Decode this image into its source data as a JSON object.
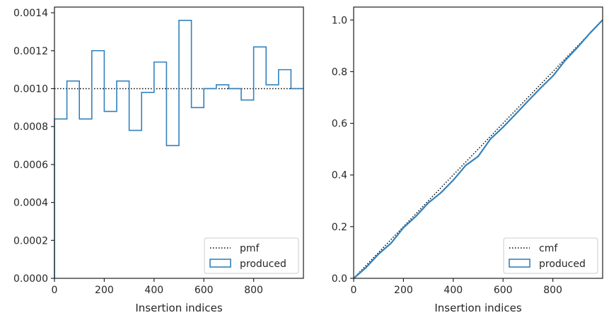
{
  "colors": {
    "produced": "#3182bd",
    "reference": "#000000",
    "axes": "#262626",
    "legend_border": "#cccccc"
  },
  "chart_data": [
    {
      "type": "histogram-step",
      "xlabel": "Insertion indices",
      "ylabel": "",
      "xlim": [
        0,
        1000
      ],
      "ylim": [
        0,
        0.00143
      ],
      "x_ticks": [
        0,
        200,
        400,
        600,
        800
      ],
      "y_ticks": [
        0.0,
        0.0002,
        0.0004,
        0.0006,
        0.0008,
        0.001,
        0.0012,
        0.0014
      ],
      "y_tick_labels": [
        "0.0000",
        "0.0002",
        "0.0004",
        "0.0006",
        "0.0008",
        "0.0010",
        "0.0012",
        "0.0014"
      ],
      "x_tick_labels": [
        "0",
        "200",
        "400",
        "600",
        "800"
      ],
      "legend_position": "lower right",
      "series": [
        {
          "name": "pmf",
          "style": "dotted",
          "x": [
            0,
            1000
          ],
          "y": [
            0.001,
            0.001
          ]
        },
        {
          "name": "produced",
          "style": "step",
          "bin_edges": [
            0,
            50,
            100,
            150,
            200,
            250,
            300,
            350,
            400,
            450,
            500,
            550,
            600,
            650,
            700,
            750,
            800,
            850,
            900,
            950,
            1000
          ],
          "values": [
            0.00084,
            0.00104,
            0.00084,
            0.0012,
            0.00088,
            0.00104,
            0.00078,
            0.00098,
            0.00114,
            0.0007,
            0.00136,
            0.0009,
            0.001,
            0.00102,
            0.001,
            0.00094,
            0.00122,
            0.00102,
            0.0011,
            0.001
          ]
        }
      ]
    },
    {
      "type": "line",
      "xlabel": "Insertion indices",
      "ylabel": "",
      "xlim": [
        0,
        1000
      ],
      "ylim": [
        0,
        1.05
      ],
      "x_ticks": [
        0,
        200,
        400,
        600,
        800
      ],
      "x_tick_labels": [
        "0",
        "200",
        "400",
        "600",
        "800"
      ],
      "y_ticks": [
        0.0,
        0.2,
        0.4,
        0.6,
        0.8,
        1.0
      ],
      "y_tick_labels": [
        "0.0",
        "0.2",
        "0.4",
        "0.6",
        "0.8",
        "1.0"
      ],
      "legend_position": "lower right",
      "series": [
        {
          "name": "cmf",
          "style": "dotted",
          "x": [
            0,
            1000
          ],
          "y": [
            0,
            1.0
          ]
        },
        {
          "name": "produced",
          "style": "line",
          "x": [
            0,
            50,
            100,
            150,
            200,
            250,
            300,
            350,
            400,
            450,
            500,
            550,
            600,
            650,
            700,
            750,
            800,
            850,
            900,
            950,
            1000
          ],
          "y": [
            0,
            0.042,
            0.094,
            0.136,
            0.196,
            0.24,
            0.292,
            0.331,
            0.38,
            0.437,
            0.472,
            0.54,
            0.585,
            0.635,
            0.686,
            0.736,
            0.783,
            0.844,
            0.895,
            0.95,
            1.0
          ]
        }
      ]
    }
  ]
}
